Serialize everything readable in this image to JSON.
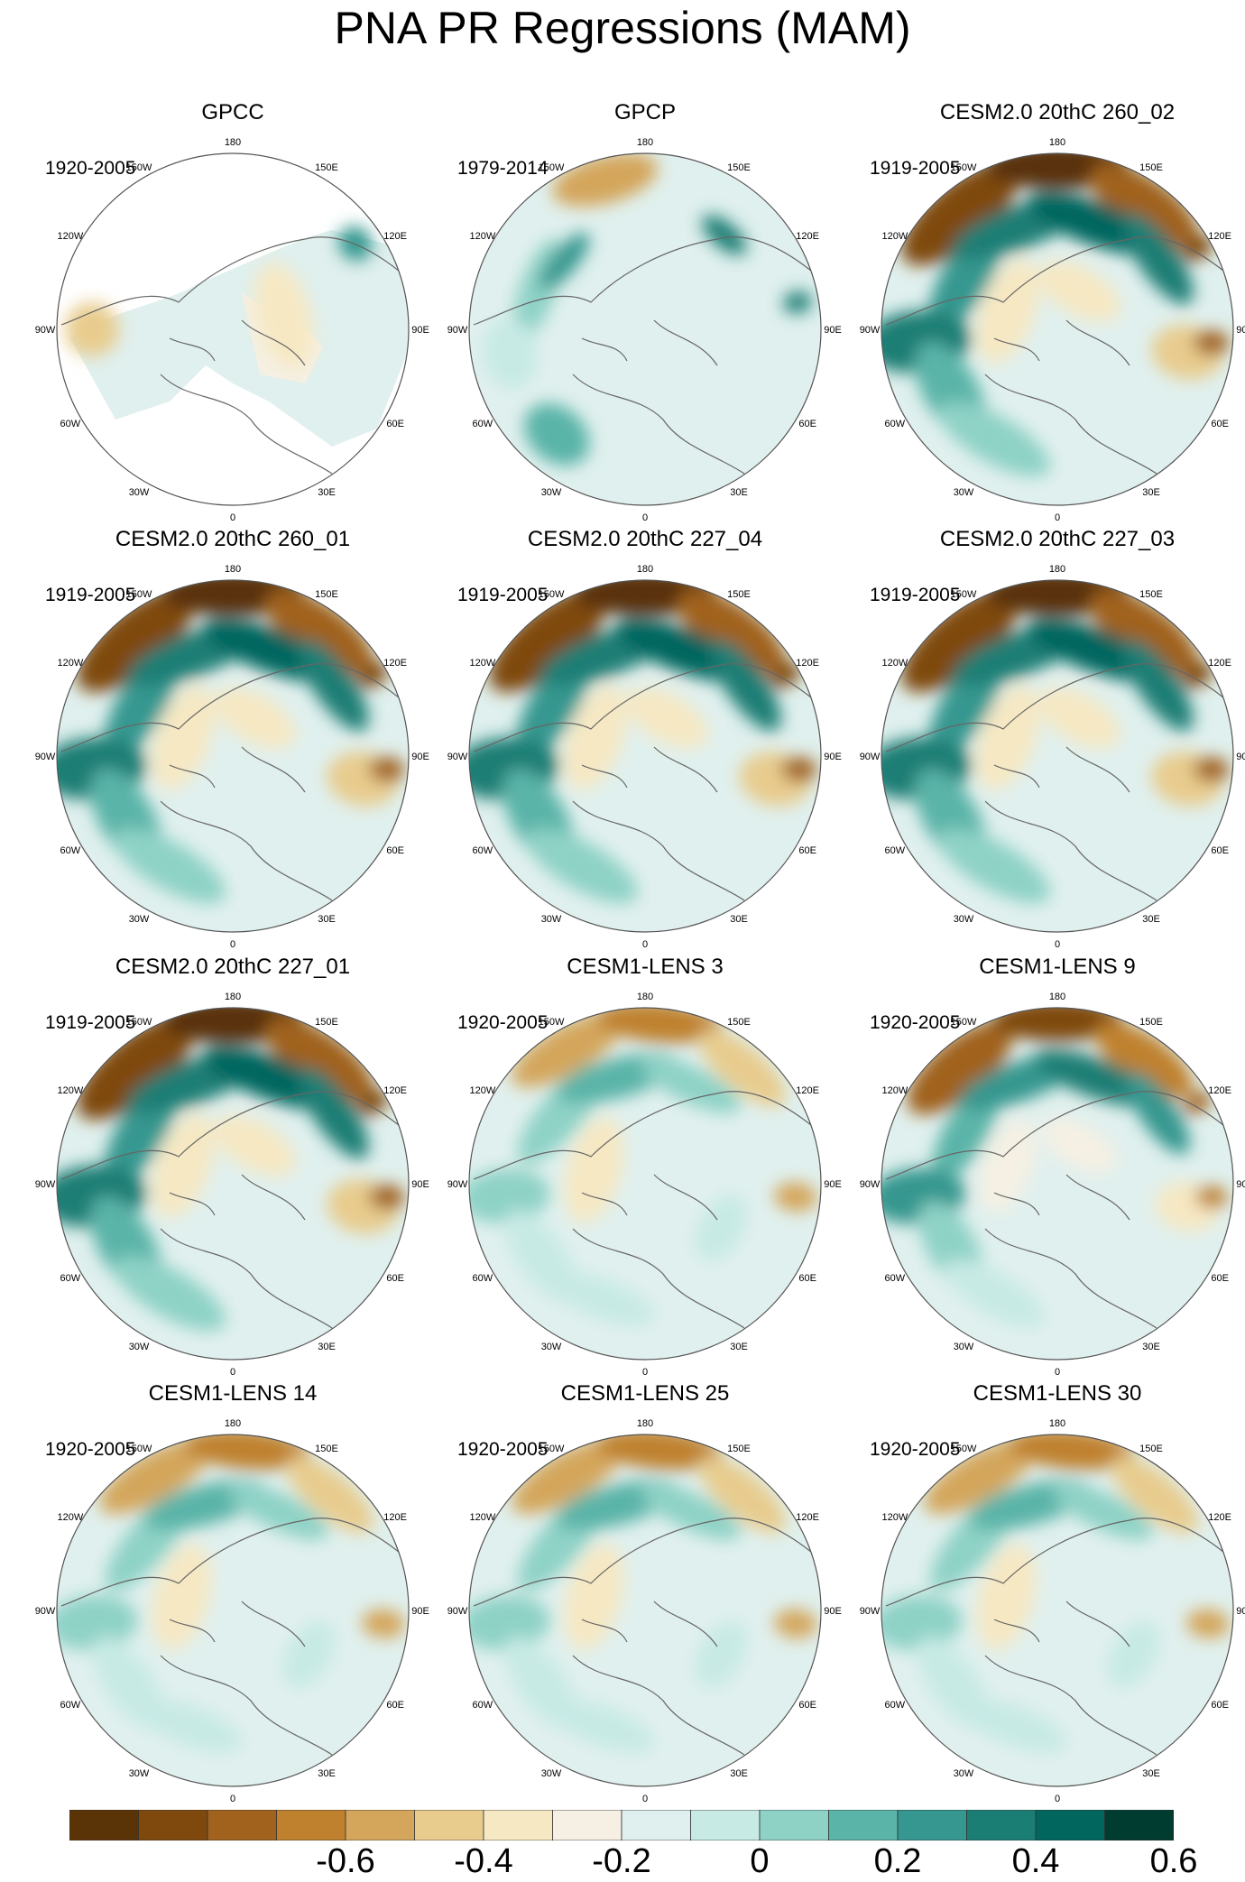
{
  "title": "PNA PR Regressions (MAM)",
  "panels": [
    {
      "title": "GPCC",
      "period": "1920-2005"
    },
    {
      "title": "GPCP",
      "period": "1979-2014"
    },
    {
      "title": "CESM2.0 20thC 260_02",
      "period": "1919-2005"
    },
    {
      "title": "CESM2.0 20thC 260_01",
      "period": "1919-2005"
    },
    {
      "title": "CESM2.0 20thC 227_04",
      "period": "1919-2005"
    },
    {
      "title": "CESM2.0 20thC 227_03",
      "period": "1919-2005"
    },
    {
      "title": "CESM2.0 20thC 227_01",
      "period": "1919-2005"
    },
    {
      "title": "CESM1-LENS 3",
      "period": "1920-2005"
    },
    {
      "title": "CESM1-LENS 9",
      "period": "1920-2005"
    },
    {
      "title": "CESM1-LENS 14",
      "period": "1920-2005"
    },
    {
      "title": "CESM1-LENS 25",
      "period": "1920-2005"
    },
    {
      "title": "CESM1-LENS 30",
      "period": "1920-2005"
    }
  ],
  "longitude_labels": [
    "180",
    "150E",
    "120E",
    "90E",
    "60E",
    "30E",
    "0",
    "30W",
    "60W",
    "90W",
    "120W",
    "150W"
  ],
  "colorbar": {
    "colors": [
      "#5a3307",
      "#7f480d",
      "#a0621c",
      "#bf812d",
      "#d4a65c",
      "#e8cc8e",
      "#f6e8c3",
      "#f5f0e3",
      "#e0f0ee",
      "#c7eae5",
      "#8ed2c6",
      "#5ab4a8",
      "#35978f",
      "#1a7e74",
      "#01665e",
      "#003c30"
    ],
    "tick_labels": [
      {
        "value": -0.6,
        "text": "-0.6"
      },
      {
        "value": -0.4,
        "text": "-0.4"
      },
      {
        "value": -0.2,
        "text": "-0.2"
      },
      {
        "value": 0,
        "text": "0"
      },
      {
        "value": 0.2,
        "text": "0.2"
      },
      {
        "value": 0.4,
        "text": "0.4"
      },
      {
        "value": 0.6,
        "text": "0.6"
      }
    ]
  }
}
